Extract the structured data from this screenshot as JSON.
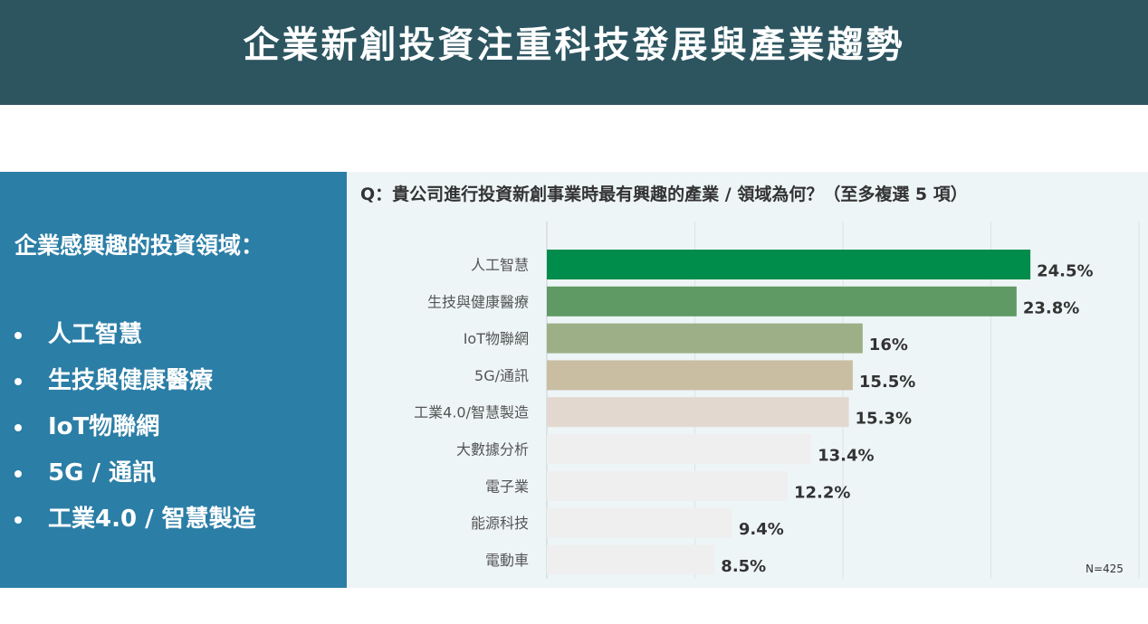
{
  "header": {
    "title": "企業新創投資注重科技發展與產業趨勢"
  },
  "left_panel": {
    "heading": "企業感興趣的投資領域：",
    "items": [
      "人工智慧",
      "生技與健康醫療",
      "IoT物聯網",
      "5G / 通訊",
      "工業4.0 / 智慧製造"
    ]
  },
  "chart_data": {
    "type": "bar",
    "orientation": "horizontal",
    "title": "Q：貴公司進行投資新創事業時最有興趣的產業 / 領域為何？（至多複選 5 項）",
    "categories": [
      "人工智慧",
      "生技與健康醫療",
      "IoT物聯網",
      "5G/通訊",
      "工業4.0/智慧製造",
      "大數據分析",
      "電子業",
      "能源科技",
      "電動車"
    ],
    "values": [
      24.5,
      23.8,
      16,
      15.5,
      15.3,
      13.4,
      12.2,
      9.4,
      8.5
    ],
    "value_labels": [
      "24.5%",
      "23.8%",
      "16%",
      "15.5%",
      "15.3%",
      "13.4%",
      "12.2%",
      "9.4%",
      "8.5%"
    ],
    "bar_colors": [
      "#008c4a",
      "#5f9a65",
      "#9caf86",
      "#c9bea2",
      "#e3d8cf",
      "#efefef",
      "#efefef",
      "#efefef",
      "#efefef"
    ],
    "xlim": [
      0,
      30
    ],
    "grid": true,
    "note": "N=425"
  }
}
